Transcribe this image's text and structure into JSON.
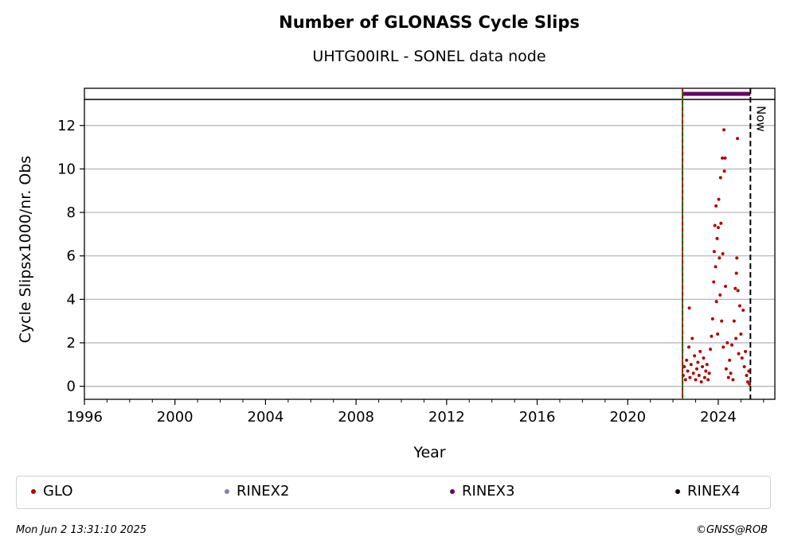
{
  "chart_data": {
    "type": "scatter",
    "title": "Number of GLONASS Cycle Slips",
    "subtitle": "UHTG00IRL - SONEL data node",
    "xlabel": "Year",
    "ylabel": "Cycle Slipsx1000/nr. Obs",
    "xlim": [
      1996,
      2026.5
    ],
    "ylim": [
      -0.6,
      13.2
    ],
    "xticks": [
      1996,
      2000,
      2004,
      2008,
      2012,
      2016,
      2020,
      2024
    ],
    "yticks": [
      0,
      2,
      4,
      6,
      8,
      10,
      12
    ],
    "grid": "horizontal",
    "vlines": [
      {
        "x": 2022.42,
        "style": "dashed",
        "colors": [
          "#008000",
          "#b30000"
        ]
      },
      {
        "x": 2025.42,
        "label": "Now",
        "style": "dashed",
        "color": "#000000"
      }
    ],
    "rinex3_bar": {
      "x_start": 2022.42,
      "x_end": 2025.42,
      "color": "#660066"
    },
    "series": [
      {
        "name": "GLO",
        "color": "#b30000",
        "points": [
          [
            2022.45,
            0.5
          ],
          [
            2022.5,
            0.9
          ],
          [
            2022.55,
            0.3
          ],
          [
            2022.6,
            1.2
          ],
          [
            2022.65,
            0.7
          ],
          [
            2022.7,
            1.8
          ],
          [
            2022.72,
            3.6
          ],
          [
            2022.75,
            0.4
          ],
          [
            2022.8,
            1.0
          ],
          [
            2022.85,
            2.2
          ],
          [
            2022.9,
            0.6
          ],
          [
            2022.95,
            1.4
          ],
          [
            2023.0,
            0.3
          ],
          [
            2023.05,
            0.8
          ],
          [
            2023.1,
            1.1
          ],
          [
            2023.15,
            0.5
          ],
          [
            2023.2,
            1.6
          ],
          [
            2023.25,
            0.2
          ],
          [
            2023.3,
            0.9
          ],
          [
            2023.35,
            1.3
          ],
          [
            2023.4,
            0.4
          ],
          [
            2023.45,
            0.7
          ],
          [
            2023.5,
            1.0
          ],
          [
            2023.55,
            0.3
          ],
          [
            2023.6,
            0.6
          ],
          [
            2023.65,
            1.7
          ],
          [
            2023.7,
            2.3
          ],
          [
            2023.75,
            3.1
          ],
          [
            2023.8,
            4.8
          ],
          [
            2023.82,
            6.2
          ],
          [
            2023.85,
            7.4
          ],
          [
            2023.88,
            5.5
          ],
          [
            2023.9,
            8.3
          ],
          [
            2023.92,
            3.9
          ],
          [
            2023.95,
            6.8
          ],
          [
            2023.97,
            2.4
          ],
          [
            2024.0,
            7.3
          ],
          [
            2024.02,
            8.6
          ],
          [
            2024.05,
            5.9
          ],
          [
            2024.08,
            4.2
          ],
          [
            2024.1,
            9.6
          ],
          [
            2024.12,
            7.5
          ],
          [
            2024.15,
            3.0
          ],
          [
            2024.18,
            10.5
          ],
          [
            2024.2,
            6.1
          ],
          [
            2024.22,
            1.8
          ],
          [
            2024.25,
            11.8
          ],
          [
            2024.27,
            9.9
          ],
          [
            2024.3,
            10.5
          ],
          [
            2024.32,
            4.6
          ],
          [
            2024.35,
            0.8
          ],
          [
            2024.4,
            2.0
          ],
          [
            2024.45,
            0.4
          ],
          [
            2024.5,
            1.2
          ],
          [
            2024.55,
            0.6
          ],
          [
            2024.6,
            1.9
          ],
          [
            2024.65,
            0.3
          ],
          [
            2024.7,
            3.0
          ],
          [
            2024.75,
            4.5
          ],
          [
            2024.78,
            2.2
          ],
          [
            2024.8,
            5.2
          ],
          [
            2024.82,
            5.9
          ],
          [
            2024.85,
            11.4
          ],
          [
            2024.87,
            4.4
          ],
          [
            2024.9,
            1.5
          ],
          [
            2024.95,
            3.7
          ],
          [
            2025.0,
            2.4
          ],
          [
            2025.05,
            1.3
          ],
          [
            2025.1,
            3.5
          ],
          [
            2025.15,
            0.9
          ],
          [
            2025.2,
            1.6
          ],
          [
            2025.25,
            0.5
          ],
          [
            2025.3,
            0.2
          ],
          [
            2025.35,
            0.7
          ],
          [
            2025.38,
            0.1
          ]
        ]
      }
    ],
    "legend": {
      "placement": "bottom",
      "entries": [
        {
          "label": "GLO",
          "color": "#b30000"
        },
        {
          "label": "RINEX2",
          "color": "#7f7fbf"
        },
        {
          "label": "RINEX3",
          "color": "#660066"
        },
        {
          "label": "RINEX4",
          "color": "#1a0010"
        }
      ]
    }
  },
  "footer": {
    "timestamp": "Mon Jun  2 13:31:10 2025",
    "credit": "©GNSS@ROB"
  }
}
